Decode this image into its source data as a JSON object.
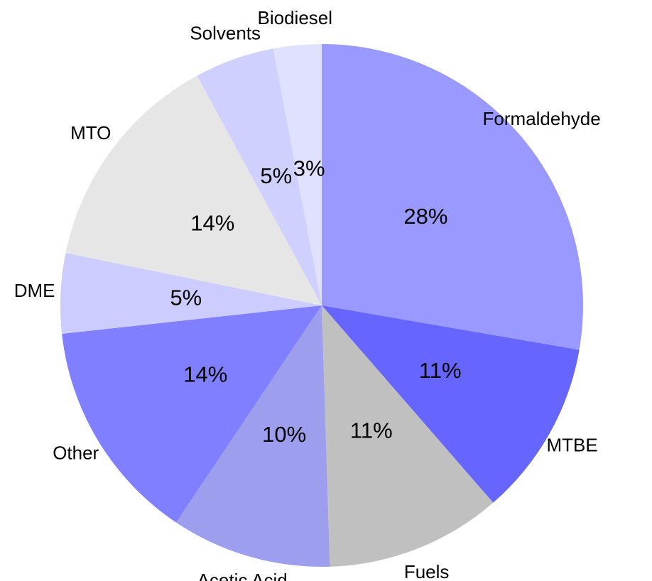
{
  "chart_data": {
    "type": "pie",
    "categories": [
      "Formaldehyde",
      "MTBE",
      "Fuels",
      "Acetic Acid",
      "Other",
      "DME",
      "MTO",
      "Solvents",
      "Biodiesel"
    ],
    "values": [
      28,
      11,
      11,
      10,
      14,
      5,
      14,
      5,
      3
    ],
    "value_labels": [
      "28%",
      "11%",
      "11%",
      "10%",
      "14%",
      "5%",
      "14%",
      "5%",
      "3%"
    ],
    "colors": [
      "#9999ff",
      "#6666ff",
      "#c0c0c0",
      "#9e9eee",
      "#7f7fff",
      "#ccccff",
      "#e6e6e6",
      "#d0d0ff",
      "#e0e0ff"
    ]
  }
}
